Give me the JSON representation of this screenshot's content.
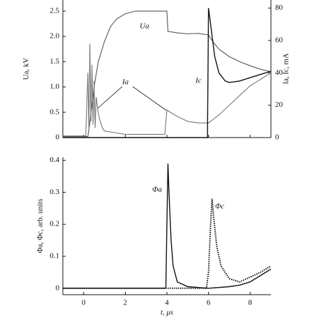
{
  "chart_data": [
    {
      "type": "line",
      "ylabel": "Ua, kV",
      "y2label": "Ia, Ic, mA",
      "xlim": [
        -1,
        9
      ],
      "xticks": [
        0,
        2,
        4,
        6,
        8
      ],
      "show_xtick_labels": false,
      "ylim": [
        0,
        2.72
      ],
      "yticks": [
        0,
        0.5,
        {
          "value": 1,
          "label": "1.0"
        },
        1.5,
        {
          "value": 2,
          "label": "2.0"
        },
        2.5
      ],
      "y2lim": [
        0,
        85
      ],
      "y2ticks": [
        0,
        20,
        40,
        60,
        80
      ],
      "series": [
        {
          "name": "Ua",
          "color": "#555555",
          "axis": "y",
          "x": [
            -1,
            0.2,
            0.3,
            0.5,
            0.7,
            1.0,
            1.3,
            1.6,
            2.0,
            2.5,
            3,
            3.5,
            4.0,
            4.05,
            4.5,
            5,
            5.5,
            6.0,
            6.2,
            6.5,
            7,
            7.5,
            8,
            8.5,
            9
          ],
          "values": [
            0.02,
            0.02,
            0.3,
            1.0,
            1.5,
            1.9,
            2.2,
            2.35,
            2.45,
            2.5,
            2.5,
            2.5,
            2.5,
            2.1,
            2.07,
            2.05,
            2.06,
            2.03,
            1.9,
            1.75,
            1.6,
            1.5,
            1.42,
            1.35,
            1.3
          ]
        },
        {
          "name": "Ia",
          "color": "#777777",
          "axis": "y2",
          "x": [
            -1,
            0.1,
            0.2,
            0.25,
            0.3,
            0.35,
            0.4,
            0.45,
            0.5,
            0.55,
            0.6,
            0.7,
            0.8,
            0.9,
            1.0,
            1.5,
            2,
            3,
            3.9,
            4.0,
            4.5,
            5,
            5.5,
            6,
            6.5,
            7,
            7.5,
            8,
            8.5,
            9
          ],
          "values": [
            1,
            1,
            40,
            5,
            58,
            10,
            45,
            8,
            35,
            6,
            25,
            15,
            10,
            6,
            4,
            3,
            2,
            2,
            2,
            17,
            13,
            10,
            9,
            9,
            14,
            20,
            26,
            32,
            36,
            40
          ]
        },
        {
          "name": "Ic",
          "color": "#111111",
          "axis": "y2",
          "x": [
            -1,
            5.95,
            6.0,
            6.1,
            6.3,
            6.5,
            6.8,
            7,
            7.5,
            8,
            8.5,
            9
          ],
          "values": [
            0,
            0,
            80,
            70,
            50,
            40,
            35,
            34,
            35,
            37,
            39,
            41
          ]
        }
      ]
    },
    {
      "type": "line",
      "ylabel": "Φa, Φc, arb. units",
      "xlabel": "t, μs",
      "xlim": [
        -1,
        9
      ],
      "xticks": [
        0,
        2,
        4,
        6,
        8
      ],
      "show_xtick_labels": true,
      "ylim": [
        -0.02,
        0.41
      ],
      "yticks": [
        0,
        0.1,
        0.2,
        0.3,
        0.4
      ],
      "series": [
        {
          "name": "Φa",
          "color": "#111111",
          "dash": false,
          "x": [
            -1,
            3.95,
            4.0,
            4.05,
            4.1,
            4.2,
            4.3,
            4.5,
            5,
            6,
            7,
            7.5,
            8,
            8.5,
            9
          ],
          "values": [
            0,
            0,
            0.2,
            0.39,
            0.3,
            0.15,
            0.07,
            0.02,
            0.005,
            0,
            0.005,
            0.01,
            0.02,
            0.04,
            0.06
          ]
        },
        {
          "name": "Φc",
          "color": "#111111",
          "dash": true,
          "x": [
            -1,
            5.9,
            6.0,
            6.1,
            6.17,
            6.25,
            6.4,
            6.6,
            7.0,
            7.5,
            8,
            8.5,
            9
          ],
          "values": [
            0,
            0,
            0.05,
            0.2,
            0.28,
            0.22,
            0.13,
            0.07,
            0.03,
            0.02,
            0.035,
            0.05,
            0.07
          ]
        }
      ]
    }
  ]
}
